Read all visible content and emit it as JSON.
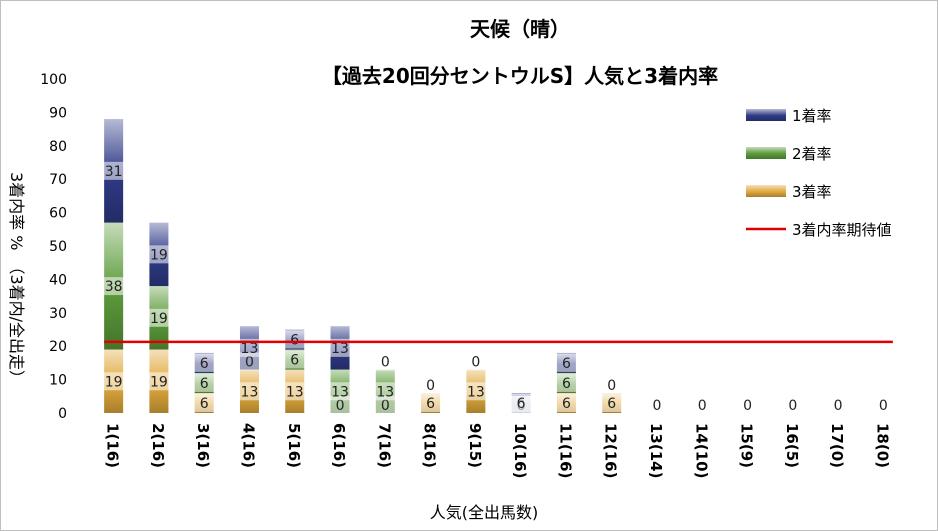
{
  "chart_data": {
    "type": "bar",
    "stacked": true,
    "title": "天候（晴）",
    "subtitle": "【過去20回分セントウルS】人気と3着内率",
    "xlabel": "人気(全出馬数)",
    "ylabel": "3着内率 %　（3着内/全出走）",
    "ylim": [
      0,
      100
    ],
    "yticks": [
      0,
      10,
      20,
      30,
      40,
      50,
      60,
      70,
      80,
      90,
      100
    ],
    "grid": false,
    "legend_position": "right",
    "categories": [
      "1(16)",
      "2(16)",
      "3(16)",
      "4(16)",
      "5(16)",
      "6(16)",
      "7(16)",
      "8(16)",
      "9(15)",
      "10(16)",
      "11(16)",
      "12(16)",
      "13(14)",
      "14(10)",
      "15(9)",
      "16(5)",
      "17(0)",
      "18(0)"
    ],
    "series": [
      {
        "name": "3着率",
        "color": "#e0a93c",
        "values": [
          19,
          19,
          6,
          13,
          13,
          0,
          0,
          6,
          13,
          0,
          6,
          6,
          0,
          0,
          0,
          0,
          0,
          0
        ]
      },
      {
        "name": "2着率",
        "color": "#5b9a3a",
        "values": [
          38,
          19,
          6,
          0,
          6,
          13,
          13,
          0,
          0,
          0,
          6,
          0,
          0,
          0,
          0,
          0,
          0,
          0
        ]
      },
      {
        "name": "1着率",
        "color": "#2e3a86",
        "values": [
          31,
          19,
          6,
          13,
          6,
          13,
          0,
          0,
          0,
          6,
          6,
          0,
          0,
          0,
          0,
          0,
          0,
          0
        ]
      }
    ],
    "data_labels": {
      "3着率": [
        "19",
        "19",
        "6",
        "13",
        "13",
        "0",
        "0",
        "6",
        "13",
        "0",
        "6",
        "6",
        "0",
        "0",
        "0",
        "0",
        "0",
        "0"
      ],
      "2着率": [
        "38",
        "19",
        "6",
        "0",
        "6",
        "13",
        "13",
        "0",
        "0",
        "0",
        "6",
        "0",
        "",
        "",
        "",
        "",
        "",
        ""
      ],
      "1着率": [
        "31",
        "19",
        "6",
        "13",
        "6",
        "13",
        "0",
        "",
        "",
        "6",
        "6",
        "",
        "",
        "",
        "",
        "",
        "",
        ""
      ]
    },
    "reference_line": {
      "name": "3着内率期待値",
      "color": "#e00000",
      "value": 21.3
    }
  }
}
